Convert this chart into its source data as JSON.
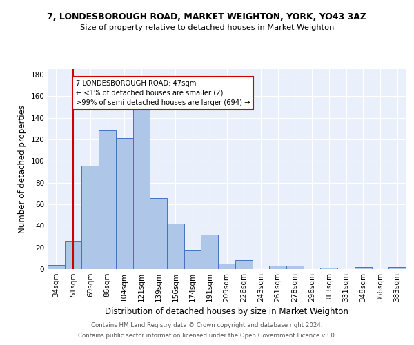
{
  "title1": "7, LONDESBOROUGH ROAD, MARKET WEIGHTON, YORK, YO43 3AZ",
  "title2": "Size of property relative to detached houses in Market Weighton",
  "xlabel": "Distribution of detached houses by size in Market Weighton",
  "ylabel": "Number of detached properties",
  "categories": [
    "34sqm",
    "51sqm",
    "69sqm",
    "86sqm",
    "104sqm",
    "121sqm",
    "139sqm",
    "156sqm",
    "174sqm",
    "191sqm",
    "209sqm",
    "226sqm",
    "243sqm",
    "261sqm",
    "278sqm",
    "296sqm",
    "313sqm",
    "331sqm",
    "348sqm",
    "366sqm",
    "383sqm"
  ],
  "values": [
    4,
    26,
    96,
    128,
    121,
    150,
    66,
    42,
    17,
    32,
    5,
    8,
    0,
    3,
    3,
    0,
    1,
    0,
    2,
    0,
    2
  ],
  "bar_color": "#aec6e8",
  "bar_edge_color": "#4472c4",
  "vline_x": 1,
  "vline_color": "#cc0000",
  "annotation_text": "7 LONDESBOROUGH ROAD: 47sqm\n← <1% of detached houses are smaller (2)\n>99% of semi-detached houses are larger (694) →",
  "annotation_box_color": "#ffffff",
  "annotation_box_edge": "#cc0000",
  "ylim": [
    0,
    185
  ],
  "yticks": [
    0,
    20,
    40,
    60,
    80,
    100,
    120,
    140,
    160,
    180
  ],
  "footer1": "Contains HM Land Registry data © Crown copyright and database right 2024.",
  "footer2": "Contains public sector information licensed under the Open Government Licence v3.0.",
  "bg_color": "#eaf0fb",
  "fig_bg_color": "#ffffff"
}
